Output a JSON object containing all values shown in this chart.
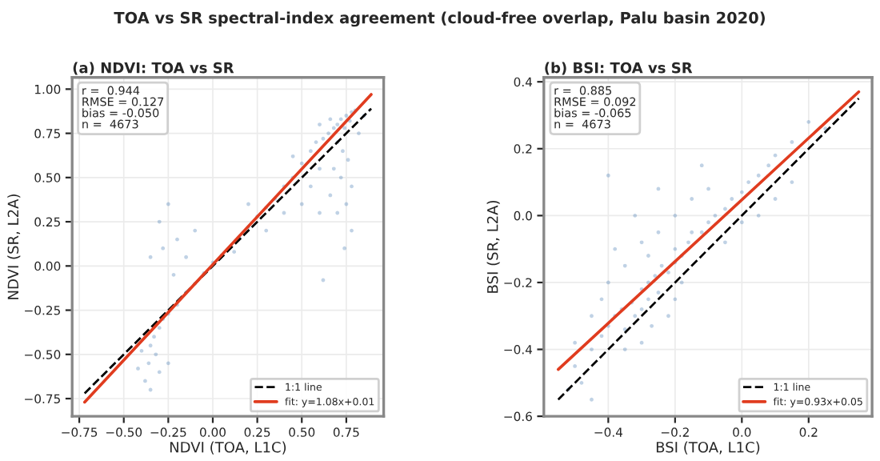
{
  "chart_data": [
    {
      "type": "scatter",
      "title": "(a) NDVI: TOA vs SR",
      "xlabel": "NDVI (TOA, L1C)",
      "ylabel": "NDVI (SR, L2A)",
      "annotations": [
        "TOA vs SR spectral-index agreement (cloud-free overlap, Palu basin 2020)",
        "r =  0.944\nRMSE = 0.127\nbias = -0.050\nn =  4673"
      ],
      "xlim": [
        -0.79,
        0.96
      ],
      "ylim": [
        -0.85,
        1.066
      ],
      "xticks": [
        {
          "value": -0.75,
          "label": "−0.75"
        },
        {
          "value": -0.5,
          "label": "−0.50"
        },
        {
          "value": -0.25,
          "label": "−0.25"
        },
        {
          "value": 0,
          "label": "0.00"
        },
        {
          "value": 0.25,
          "label": "0.25"
        },
        {
          "value": 0.5,
          "label": "0.50"
        },
        {
          "value": 0.75,
          "label": "0.75"
        }
      ],
      "yticks": [
        {
          "value": -0.75,
          "label": "−0.75"
        },
        {
          "value": -0.5,
          "label": "−0.50"
        },
        {
          "value": -0.25,
          "label": "−0.25"
        },
        {
          "value": 0,
          "label": "0.00"
        },
        {
          "value": 0.25,
          "label": "0.25"
        },
        {
          "value": 0.5,
          "label": "0.50"
        },
        {
          "value": 0.75,
          "label": "0.75"
        },
        {
          "value": 1,
          "label": "1.00"
        }
      ],
      "grid": true,
      "legend": "lower right",
      "series": [
        {
          "color": "#4a7fb5",
          "x": [
            0.7,
            0.72,
            0.75,
            0.78,
            0.68,
            0.65,
            0.62,
            0.74,
            0.77,
            0.8,
            0.66,
            0.6,
            0.58,
            0.55,
            0.7,
            0.73,
            0.76,
            0.68,
            0.72,
            0.78,
            0.75,
            0.7,
            0.78,
            0.74,
            0.62,
            0.66,
            0.6,
            0.5,
            0.45,
            0.4,
            0.35,
            0.3,
            0.25,
            0.2,
            0.15,
            0.12,
            0.05,
            0.0,
            -0.05,
            -0.1,
            -0.15,
            -0.2,
            -0.25,
            0.3,
            0.4,
            0.2,
            0.45,
            0.55,
            -0.3,
            -0.33,
            -0.35,
            -0.32,
            -0.36,
            -0.3,
            -0.38,
            -0.35,
            -0.4,
            -0.28,
            -0.25,
            -0.42,
            -0.3,
            -0.25,
            -0.2,
            -0.15,
            -0.28,
            -0.22,
            -0.1,
            -0.35,
            0.85,
            0.82,
            0.6,
            0.5
          ],
          "values": [
            0.8,
            0.83,
            0.85,
            0.87,
            0.78,
            0.75,
            0.72,
            0.78,
            0.82,
            0.88,
            0.83,
            0.8,
            0.7,
            0.65,
            0.7,
            0.65,
            0.6,
            0.55,
            0.5,
            0.45,
            0.35,
            0.3,
            0.2,
            0.1,
            -0.08,
            0.4,
            0.55,
            0.58,
            0.5,
            0.45,
            0.38,
            0.33,
            0.28,
            0.22,
            0.16,
            0.08,
            0.06,
            0.02,
            -0.04,
            -0.1,
            -0.15,
            -0.22,
            -0.27,
            0.2,
            0.3,
            0.35,
            0.62,
            0.45,
            -0.35,
            -0.4,
            -0.45,
            -0.5,
            -0.55,
            -0.6,
            -0.65,
            -0.7,
            -0.48,
            -0.3,
            -0.55,
            -0.58,
            0.25,
            0.35,
            0.15,
            0.05,
            0.1,
            -0.05,
            0.2,
            0.05,
            0.85,
            0.75,
            0.3,
            0.35
          ]
        },
        {
          "type": "line",
          "name": "1:1 line",
          "color": "#000000",
          "line_style": "dashed",
          "x": [
            -0.72,
            0.89
          ],
          "values": [
            -0.72,
            0.89
          ]
        },
        {
          "type": "line",
          "name": "fit: y=1.08x+0.01",
          "color": "#e03c1f",
          "line_style": "solid",
          "x": [
            -0.72,
            0.89
          ],
          "values": [
            -0.77,
            0.97
          ]
        }
      ]
    },
    {
      "type": "scatter",
      "title": "(b) BSI: TOA vs SR",
      "xlabel": "BSI (TOA, L1C)",
      "ylabel": "BSI (SR, L2A)",
      "annotations": [
        "r =  0.885\nRMSE = 0.092\nbias = -0.065\nn =  4673"
      ],
      "xlim": [
        -0.593,
        0.39
      ],
      "ylim": [
        -0.6,
        0.413
      ],
      "xticks": [
        {
          "value": -0.4,
          "label": "−0.4"
        },
        {
          "value": -0.2,
          "label": "−0.2"
        },
        {
          "value": 0,
          "label": "0.0"
        },
        {
          "value": 0.2,
          "label": "0.2"
        }
      ],
      "yticks": [
        {
          "value": -0.6,
          "label": "−0.6"
        },
        {
          "value": -0.4,
          "label": "−0.4"
        },
        {
          "value": -0.2,
          "label": "−0.2"
        },
        {
          "value": 0,
          "label": "0.0"
        },
        {
          "value": 0.2,
          "label": "0.2"
        },
        {
          "value": 0.4,
          "label": "0.4"
        }
      ],
      "grid": true,
      "legend": "lower right",
      "series": [
        {
          "color": "#4a7fb5",
          "x": [
            -0.5,
            -0.48,
            -0.45,
            -0.42,
            -0.4,
            -0.38,
            -0.36,
            -0.35,
            -0.33,
            -0.32,
            -0.3,
            -0.3,
            -0.28,
            -0.28,
            -0.26,
            -0.25,
            -0.24,
            -0.22,
            -0.2,
            -0.2,
            -0.18,
            -0.16,
            -0.15,
            -0.12,
            -0.1,
            -0.08,
            -0.05,
            -0.03,
            0.0,
            0.02,
            0.05,
            0.08,
            0.1,
            0.15,
            0.2,
            0.25,
            -0.4,
            -0.35,
            -0.3,
            -0.25,
            -0.2,
            -0.38,
            -0.32,
            -0.28,
            -0.15,
            -0.1,
            -0.22,
            -0.3,
            -0.18,
            -0.05,
            0.0,
            -0.42,
            -0.45,
            -0.5,
            -0.52,
            -0.4,
            -0.25,
            -0.12,
            0.05,
            0.1,
            -0.35,
            -0.27,
            -0.2,
            0.15,
            -0.45
          ],
          "values": [
            -0.45,
            -0.5,
            -0.4,
            -0.36,
            -0.33,
            -0.3,
            -0.28,
            -0.34,
            -0.26,
            -0.3,
            -0.22,
            -0.28,
            -0.2,
            -0.25,
            -0.18,
            -0.23,
            -0.15,
            -0.17,
            -0.14,
            -0.1,
            -0.12,
            -0.08,
            -0.05,
            -0.05,
            -0.02,
            0.0,
            0.02,
            0.05,
            0.07,
            0.1,
            0.12,
            0.15,
            0.18,
            0.22,
            0.28,
            0.26,
            -0.2,
            -0.15,
            -0.08,
            -0.05,
            0.0,
            -0.1,
            0.0,
            -0.12,
            0.05,
            0.08,
            -0.3,
            -0.38,
            -0.2,
            -0.08,
            -0.02,
            -0.25,
            -0.3,
            -0.38,
            -0.52,
            0.12,
            0.08,
            0.15,
            0.0,
            0.05,
            -0.4,
            -0.33,
            -0.25,
            0.1,
            -0.55
          ]
        },
        {
          "type": "line",
          "name": "1:1 line",
          "color": "#000000",
          "line_style": "dashed",
          "x": [
            -0.55,
            0.35
          ],
          "values": [
            -0.55,
            0.35
          ]
        },
        {
          "type": "line",
          "name": "fit: y=0.93x+0.05",
          "color": "#e03c1f",
          "line_style": "solid",
          "x": [
            -0.55,
            0.35
          ],
          "values": [
            -0.46,
            0.37
          ]
        }
      ]
    }
  ]
}
